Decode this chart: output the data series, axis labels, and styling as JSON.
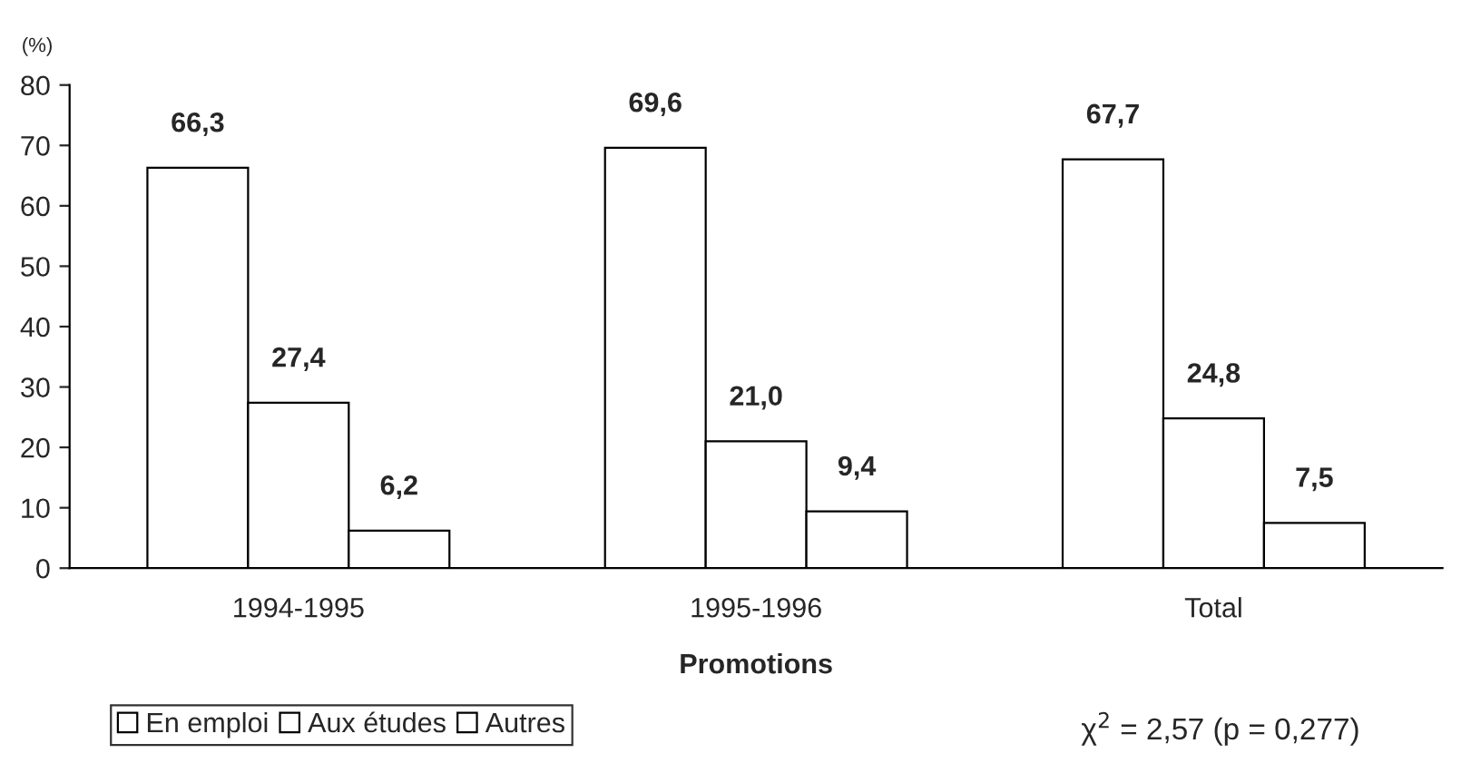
{
  "chart_data": {
    "type": "bar",
    "xlabel": "Promotions",
    "ylabel": "(%)",
    "categories": [
      "1994-1995",
      "1995-1996",
      "Total"
    ],
    "series": [
      {
        "name": "En emploi",
        "color": "#ffffff",
        "values": [
          66.3,
          69.6,
          67.7
        ],
        "value_labels": [
          "66,3",
          "69,6",
          "67,7"
        ]
      },
      {
        "name": "Aux études",
        "color": "#ffffff",
        "values": [
          27.4,
          21.0,
          24.8
        ],
        "value_labels": [
          "27,4",
          "21,0",
          "24,8"
        ]
      },
      {
        "name": "Autres",
        "color": "#ffffff",
        "values": [
          6.2,
          9.4,
          7.5
        ],
        "value_labels": [
          "6,2",
          "9,4",
          "7,5"
        ]
      }
    ],
    "ylim": [
      0,
      80
    ],
    "yticks": [
      0,
      10,
      20,
      30,
      40,
      50,
      60,
      70,
      80
    ],
    "grid": false,
    "legend": "bottom left",
    "annotations": [
      "χ$^{2}$ = 2,57 (p = 0,277)"
    ]
  }
}
